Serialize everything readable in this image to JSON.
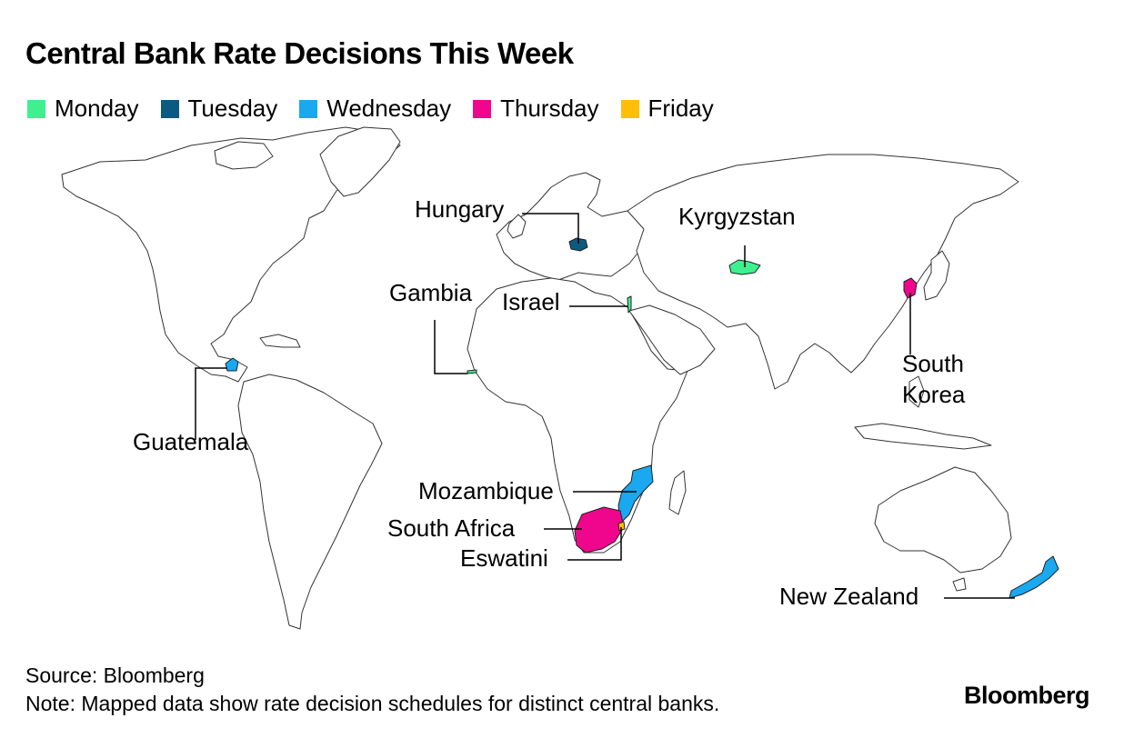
{
  "title": "Central Bank Rate Decisions This Week",
  "legend": [
    {
      "label": "Monday",
      "color": "#3ef08f"
    },
    {
      "label": "Tuesday",
      "color": "#0d5a80"
    },
    {
      "label": "Wednesday",
      "color": "#1aa8f0"
    },
    {
      "label": "Thursday",
      "color": "#f0068c"
    },
    {
      "label": "Friday",
      "color": "#ffbe0a"
    }
  ],
  "countries": [
    {
      "name": "Hungary",
      "day": "Tuesday"
    },
    {
      "name": "Kyrgyzstan",
      "day": "Monday"
    },
    {
      "name": "Gambia",
      "day": "Monday"
    },
    {
      "name": "Israel",
      "day": "Monday"
    },
    {
      "name": "South Korea",
      "day": "Thursday"
    },
    {
      "name": "Guatemala",
      "day": "Wednesday"
    },
    {
      "name": "Mozambique",
      "day": "Wednesday"
    },
    {
      "name": "South Africa",
      "day": "Thursday"
    },
    {
      "name": "Eswatini",
      "day": "Friday"
    },
    {
      "name": "New Zealand",
      "day": "Wednesday"
    }
  ],
  "labels": {
    "hungary": "Hungary",
    "kyrgyzstan": "Kyrgyzstan",
    "gambia": "Gambia",
    "israel": "Israel",
    "south_korea_line1": "South",
    "south_korea_line2": "Korea",
    "guatemala": "Guatemala",
    "mozambique": "Mozambique",
    "south_africa": "South Africa",
    "eswatini": "Eswatini",
    "new_zealand": "New Zealand"
  },
  "footer": {
    "source": "Source: Bloomberg",
    "note": "Note: Mapped data show rate decision schedules for distinct central banks."
  },
  "brand": "Bloomberg"
}
